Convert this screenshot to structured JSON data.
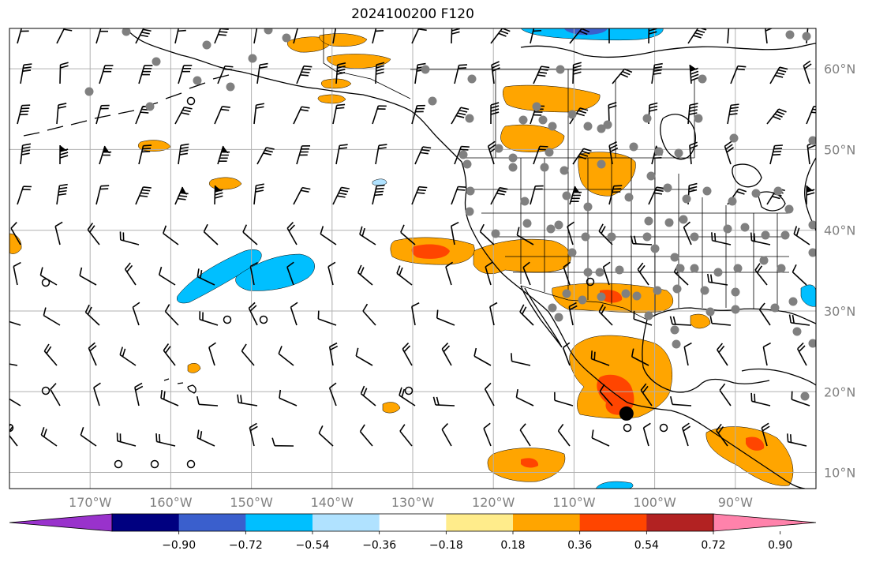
{
  "title": "2024100200 F120",
  "map": {
    "lon_range": [
      -180,
      -80
    ],
    "lat_range": [
      8,
      65
    ],
    "lon_gridlines": [
      -170,
      -160,
      -150,
      -140,
      -130,
      -120,
      -110,
      -100,
      -90
    ],
    "lat_gridlines": [
      10,
      20,
      30,
      40,
      50,
      60
    ],
    "lon_labels": [
      "170°W",
      "160°W",
      "150°W",
      "140°W",
      "130°W",
      "120°W",
      "110°W",
      "100°W",
      "90°W"
    ],
    "lat_labels": [
      "10°N",
      "20°N",
      "30°N",
      "40°N",
      "50°N",
      "60°N"
    ],
    "grid": true,
    "colors": {
      "ocean_blue_1": "#00bfff",
      "ocean_blue_2": "#3a5fcd",
      "ocean_blue_3": "#000080",
      "orange": "#ffa500",
      "red_orange": "#ff4500",
      "coastline": "#000000",
      "station_dot": "#808080"
    },
    "marker_point": {
      "lon": -103.5,
      "lat": 17.3,
      "label": ""
    }
  },
  "colorbar": {
    "ticks": [
      "−0.90",
      "−0.72",
      "−0.54",
      "−0.36",
      "−0.18",
      "0.18",
      "0.36",
      "0.54",
      "0.72",
      "0.90"
    ],
    "colors": [
      "#9932cc",
      "#000080",
      "#3a5fcd",
      "#00bfff",
      "#b0e2ff",
      "#ffffff",
      "#ffec8b",
      "#ffa500",
      "#ff4500",
      "#b22222",
      "#ff82ab"
    ],
    "extend": "both"
  }
}
